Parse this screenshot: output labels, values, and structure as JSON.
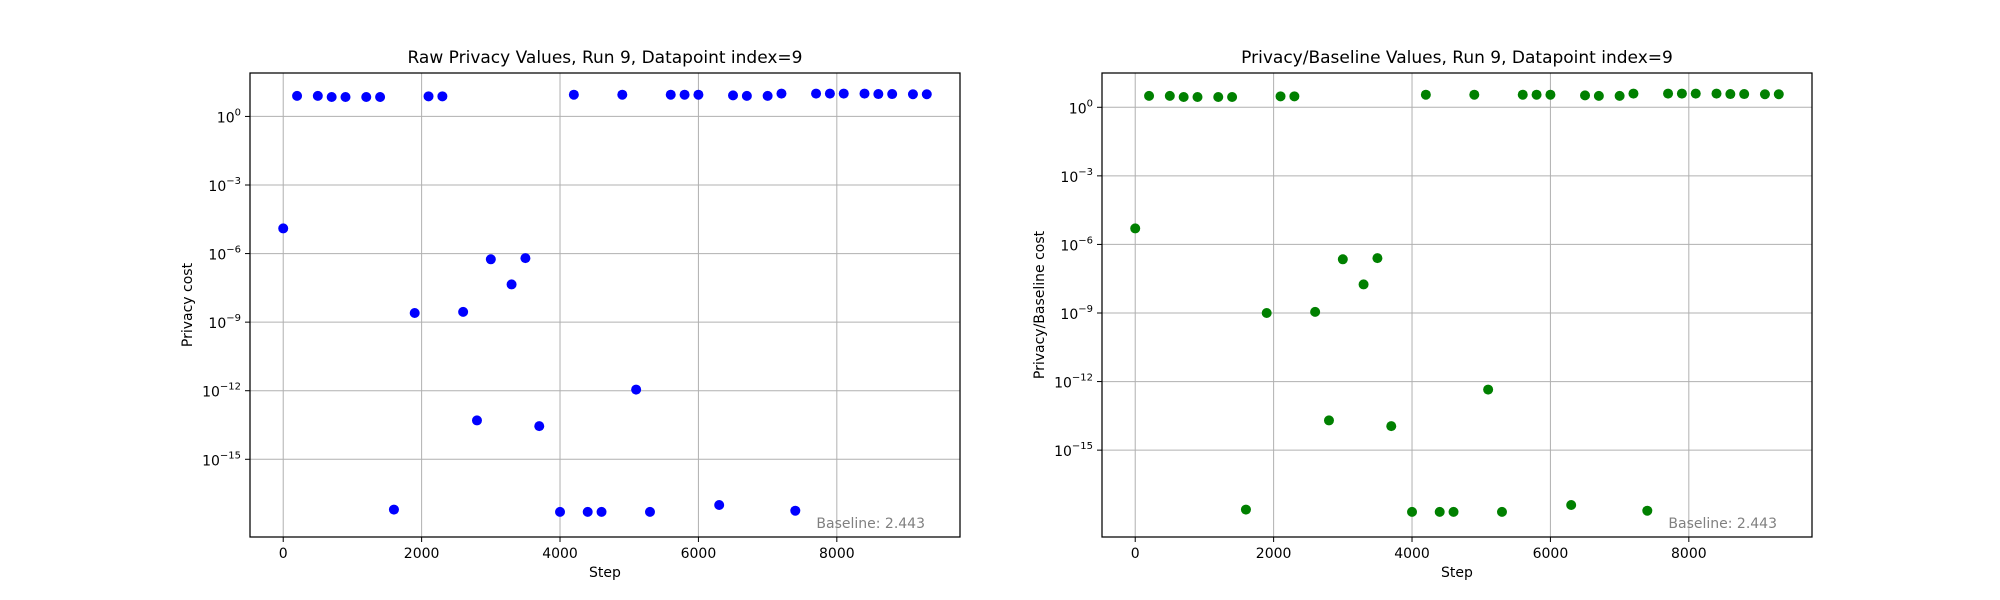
{
  "colors": {
    "raw": "#0000ff",
    "ratio": "#008000",
    "baseline_text": "#808080"
  },
  "chart_data": [
    {
      "type": "scatter",
      "title": "Raw Privacy Values, Run 9, Datapoint index=9",
      "xlabel": "Step",
      "ylabel": "Privacy cost",
      "yscale": "log",
      "grid": true,
      "xlim": [
        -480,
        9780
      ],
      "ylim_log10": [
        -18.4,
        1.9
      ],
      "xticks": [
        0,
        2000,
        4000,
        6000,
        8000
      ],
      "yticks_exp": [
        0,
        -3,
        -6,
        -9,
        -12,
        -15
      ],
      "annotation": "Baseline: 2.443",
      "annotation_position": "bottom-right",
      "series": [
        {
          "name": "raw",
          "color": "#0000ff",
          "x": [
            0,
            200,
            500,
            700,
            900,
            1200,
            1400,
            1600,
            1900,
            2100,
            2300,
            2600,
            2800,
            3000,
            3300,
            3500,
            3700,
            4000,
            4200,
            4400,
            4600,
            4900,
            5100,
            5300,
            5600,
            5800,
            6000,
            6300,
            6500,
            6700,
            7000,
            7200,
            7400,
            7700,
            7900,
            8100,
            8400,
            8600,
            8800,
            9100,
            9300
          ],
          "log10_y": [
            -4.9,
            0.9,
            0.9,
            0.85,
            0.85,
            0.85,
            0.85,
            -17.2,
            -8.6,
            0.88,
            0.88,
            -8.55,
            -13.3,
            -6.25,
            -7.35,
            -6.2,
            -13.55,
            -17.3,
            0.95,
            -17.3,
            -17.3,
            0.95,
            -11.95,
            -17.3,
            0.95,
            0.95,
            0.95,
            -17.0,
            0.92,
            0.9,
            0.9,
            1.0,
            -17.25,
            1.0,
            1.0,
            1.0,
            1.0,
            0.98,
            0.98,
            0.97,
            0.97
          ]
        }
      ]
    },
    {
      "type": "scatter",
      "title": "Privacy/Baseline Values, Run 9, Datapoint index=9",
      "xlabel": "Step",
      "ylabel": "Privacy/Baseline cost",
      "yscale": "log",
      "grid": true,
      "xlim": [
        -480,
        9780
      ],
      "ylim_log10": [
        -18.8,
        1.5
      ],
      "xticks": [
        0,
        2000,
        4000,
        6000,
        8000
      ],
      "yticks_exp": [
        0,
        -3,
        -6,
        -9,
        -12,
        -15
      ],
      "annotation": "Baseline: 2.443",
      "annotation_position": "bottom-right",
      "series": [
        {
          "name": "ratio",
          "color": "#008000",
          "x": [
            0,
            200,
            500,
            700,
            900,
            1200,
            1400,
            1600,
            1900,
            2100,
            2300,
            2600,
            2800,
            3000,
            3300,
            3500,
            3700,
            4000,
            4200,
            4400,
            4600,
            4900,
            5100,
            5300,
            5600,
            5800,
            6000,
            6300,
            6500,
            6700,
            7000,
            7200,
            7400,
            7700,
            7900,
            8100,
            8400,
            8600,
            8800,
            9100,
            9300
          ],
          "log10_y": [
            -5.3,
            0.5,
            0.5,
            0.45,
            0.45,
            0.45,
            0.45,
            -17.6,
            -9.0,
            0.48,
            0.48,
            -8.95,
            -13.7,
            -6.65,
            -7.75,
            -6.6,
            -13.95,
            -17.7,
            0.55,
            -17.7,
            -17.7,
            0.55,
            -12.35,
            -17.7,
            0.55,
            0.55,
            0.55,
            -17.4,
            0.52,
            0.5,
            0.5,
            0.6,
            -17.65,
            0.6,
            0.6,
            0.6,
            0.6,
            0.58,
            0.58,
            0.57,
            0.57
          ]
        }
      ]
    }
  ]
}
